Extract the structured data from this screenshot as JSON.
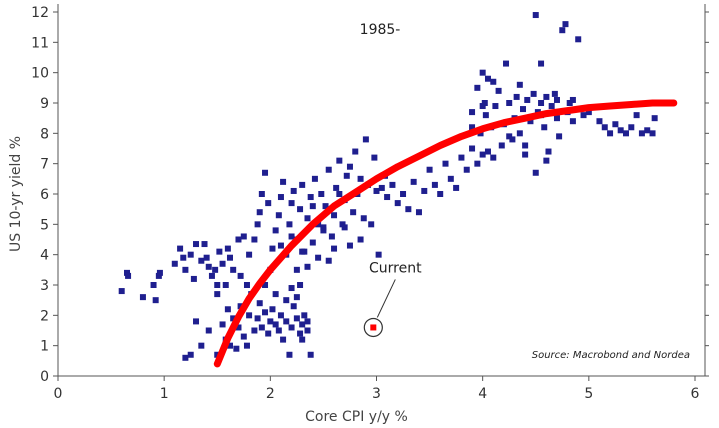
{
  "chart_data": {
    "type": "scatter",
    "title": "",
    "xlabel": "Core CPI y/y %",
    "ylabel": "US 10-yr yield %",
    "xlim": [
      0,
      6
    ],
    "ylim": [
      0,
      12
    ],
    "xticks": [
      "0",
      "1",
      "2",
      "3",
      "4",
      "5",
      "6"
    ],
    "yticks": [
      "0",
      "1",
      "2",
      "3",
      "4",
      "5",
      "6",
      "7",
      "8",
      "9",
      "10",
      "11",
      "12"
    ],
    "grid": false,
    "period_label": "1985-",
    "source": "Source: Macrobond and Nordea",
    "colors": {
      "points": "#1f1f8f",
      "fit": "#ff0000",
      "current": "#ff0000"
    },
    "current": {
      "label": "Current",
      "x": 2.97,
      "y": 1.6
    },
    "fit_curve": {
      "x": [
        1.5,
        1.6,
        1.7,
        1.8,
        1.9,
        2.0,
        2.2,
        2.4,
        2.6,
        2.8,
        3.0,
        3.2,
        3.4,
        3.6,
        3.8,
        4.0,
        4.2,
        4.4,
        4.6,
        4.8,
        5.0,
        5.2,
        5.4,
        5.6,
        5.8
      ],
      "y": [
        0.4,
        1.25,
        1.95,
        2.55,
        3.05,
        3.5,
        4.3,
        5.0,
        5.6,
        6.05,
        6.5,
        6.9,
        7.25,
        7.6,
        7.9,
        8.15,
        8.35,
        8.5,
        8.65,
        8.75,
        8.85,
        8.9,
        8.95,
        9.0,
        9.0
      ]
    },
    "points": [
      [
        0.6,
        2.8
      ],
      [
        0.65,
        3.4
      ],
      [
        0.66,
        3.3
      ],
      [
        0.8,
        2.6
      ],
      [
        0.9,
        3.0
      ],
      [
        0.92,
        2.5
      ],
      [
        0.95,
        3.3
      ],
      [
        0.96,
        3.4
      ],
      [
        1.1,
        3.7
      ],
      [
        1.15,
        4.2
      ],
      [
        1.18,
        3.9
      ],
      [
        1.2,
        3.5
      ],
      [
        1.25,
        4.0
      ],
      [
        1.28,
        3.2
      ],
      [
        1.3,
        4.35
      ],
      [
        1.35,
        3.8
      ],
      [
        1.38,
        4.35
      ],
      [
        1.4,
        3.9
      ],
      [
        1.42,
        3.6
      ],
      [
        1.45,
        3.3
      ],
      [
        1.48,
        3.5
      ],
      [
        1.5,
        3.0
      ],
      [
        1.5,
        2.7
      ],
      [
        1.52,
        4.1
      ],
      [
        1.55,
        3.7
      ],
      [
        1.58,
        3.0
      ],
      [
        1.6,
        4.2
      ],
      [
        1.62,
        3.9
      ],
      [
        1.65,
        3.5
      ],
      [
        1.7,
        4.5
      ],
      [
        1.72,
        3.3
      ],
      [
        1.75,
        4.6
      ],
      [
        1.78,
        3.0
      ],
      [
        1.8,
        4.0
      ],
      [
        1.85,
        4.5
      ],
      [
        1.88,
        5.0
      ],
      [
        1.9,
        5.4
      ],
      [
        1.92,
        6.0
      ],
      [
        1.95,
        6.7
      ],
      [
        1.98,
        5.7
      ],
      [
        1.2,
        0.6
      ],
      [
        1.25,
        0.7
      ],
      [
        1.3,
        1.8
      ],
      [
        1.35,
        1.0
      ],
      [
        1.42,
        1.5
      ],
      [
        1.5,
        0.7
      ],
      [
        1.55,
        1.7
      ],
      [
        1.58,
        1.2
      ],
      [
        1.6,
        2.2
      ],
      [
        1.62,
        1.0
      ],
      [
        1.65,
        1.9
      ],
      [
        1.68,
        0.9
      ],
      [
        1.7,
        1.6
      ],
      [
        1.72,
        2.3
      ],
      [
        1.75,
        1.3
      ],
      [
        1.78,
        1.0
      ],
      [
        1.8,
        2.0
      ],
      [
        1.82,
        2.7
      ],
      [
        1.85,
        1.5
      ],
      [
        1.88,
        1.9
      ],
      [
        1.9,
        2.4
      ],
      [
        1.92,
        1.6
      ],
      [
        1.95,
        2.1
      ],
      [
        1.98,
        1.4
      ],
      [
        2.0,
        1.8
      ],
      [
        2.02,
        2.2
      ],
      [
        2.05,
        1.7
      ],
      [
        2.08,
        1.5
      ],
      [
        2.1,
        2.0
      ],
      [
        2.12,
        1.2
      ],
      [
        2.15,
        1.8
      ],
      [
        2.18,
        0.7
      ],
      [
        2.2,
        1.6
      ],
      [
        2.22,
        2.3
      ],
      [
        2.25,
        1.9
      ],
      [
        2.28,
        1.4
      ],
      [
        2.3,
        1.7
      ],
      [
        2.32,
        2.0
      ],
      [
        2.35,
        1.5
      ],
      [
        2.38,
        0.7
      ],
      [
        2.3,
        1.2
      ],
      [
        2.25,
        2.6
      ],
      [
        2.2,
        2.9
      ],
      [
        2.28,
        3.0
      ],
      [
        2.15,
        2.5
      ],
      [
        2.35,
        1.8
      ],
      [
        2.05,
        2.7
      ],
      [
        1.95,
        3.0
      ],
      [
        2.0,
        3.5
      ],
      [
        2.02,
        4.2
      ],
      [
        2.05,
        4.8
      ],
      [
        2.08,
        5.3
      ],
      [
        2.1,
        5.9
      ],
      [
        2.12,
        6.4
      ],
      [
        2.15,
        4.0
      ],
      [
        2.18,
        5.0
      ],
      [
        2.2,
        5.7
      ],
      [
        2.22,
        6.1
      ],
      [
        2.25,
        4.5
      ],
      [
        2.28,
        5.5
      ],
      [
        2.3,
        6.3
      ],
      [
        2.32,
        4.1
      ],
      [
        2.35,
        5.2
      ],
      [
        2.38,
        5.9
      ],
      [
        2.4,
        4.4
      ],
      [
        2.42,
        6.5
      ],
      [
        2.45,
        5.0
      ],
      [
        2.48,
        6.0
      ],
      [
        2.5,
        4.8
      ],
      [
        2.52,
        5.6
      ],
      [
        2.55,
        6.8
      ],
      [
        2.58,
        4.6
      ],
      [
        2.6,
        5.3
      ],
      [
        2.62,
        6.2
      ],
      [
        2.65,
        7.1
      ],
      [
        2.68,
        5.0
      ],
      [
        2.7,
        5.8
      ],
      [
        2.72,
        6.6
      ],
      [
        2.75,
        4.3
      ],
      [
        2.78,
        5.4
      ],
      [
        2.8,
        7.4
      ],
      [
        2.82,
        6.0
      ],
      [
        2.85,
        4.5
      ],
      [
        2.88,
        5.2
      ],
      [
        2.9,
        7.8
      ],
      [
        2.92,
        6.3
      ],
      [
        2.95,
        5.0
      ],
      [
        2.98,
        7.2
      ],
      [
        3.0,
        6.1
      ],
      [
        3.02,
        4.0
      ],
      [
        2.3,
        4.1
      ],
      [
        2.2,
        4.6
      ],
      [
        2.1,
        4.3
      ],
      [
        2.4,
        5.6
      ],
      [
        2.5,
        4.9
      ],
      [
        2.6,
        4.2
      ],
      [
        2.45,
        3.9
      ],
      [
        2.35,
        3.6
      ],
      [
        2.25,
        3.5
      ],
      [
        2.55,
        3.8
      ],
      [
        2.7,
        4.9
      ],
      [
        2.65,
        6.0
      ],
      [
        2.75,
        6.9
      ],
      [
        2.85,
        6.5
      ],
      [
        3.05,
        6.2
      ],
      [
        3.08,
        6.6
      ],
      [
        3.1,
        5.9
      ],
      [
        3.15,
        6.3
      ],
      [
        3.2,
        5.7
      ],
      [
        3.25,
        6.0
      ],
      [
        3.3,
        5.5
      ],
      [
        3.35,
        6.4
      ],
      [
        3.4,
        5.4
      ],
      [
        3.45,
        6.1
      ],
      [
        3.5,
        6.8
      ],
      [
        3.55,
        6.3
      ],
      [
        3.6,
        6.0
      ],
      [
        3.65,
        7.0
      ],
      [
        3.7,
        6.5
      ],
      [
        3.75,
        6.2
      ],
      [
        3.8,
        7.2
      ],
      [
        3.85,
        6.8
      ],
      [
        3.9,
        7.5
      ],
      [
        3.95,
        7.0
      ],
      [
        3.98,
        8.0
      ],
      [
        4.0,
        7.3
      ],
      [
        4.02,
        9.0
      ],
      [
        4.05,
        7.4
      ],
      [
        3.9,
        8.7
      ],
      [
        3.95,
        9.5
      ],
      [
        4.0,
        10.0
      ],
      [
        4.03,
        8.6
      ],
      [
        4.05,
        9.8
      ],
      [
        4.08,
        8.2
      ],
      [
        4.1,
        7.2
      ],
      [
        4.12,
        8.9
      ],
      [
        4.15,
        9.4
      ],
      [
        4.18,
        7.6
      ],
      [
        4.2,
        8.3
      ],
      [
        4.22,
        10.3
      ],
      [
        4.25,
        9.0
      ],
      [
        4.28,
        7.8
      ],
      [
        4.3,
        8.5
      ],
      [
        4.32,
        9.2
      ],
      [
        4.35,
        8.0
      ],
      [
        4.38,
        8.8
      ],
      [
        4.4,
        7.3
      ],
      [
        4.42,
        9.1
      ],
      [
        4.45,
        8.4
      ],
      [
        4.48,
        9.3
      ],
      [
        4.5,
        6.7
      ],
      [
        4.5,
        11.9
      ],
      [
        4.52,
        8.7
      ],
      [
        4.55,
        9.0
      ],
      [
        4.55,
        10.3
      ],
      [
        4.58,
        8.2
      ],
      [
        4.6,
        9.2
      ],
      [
        4.62,
        7.4
      ],
      [
        4.65,
        8.9
      ],
      [
        4.68,
        9.3
      ],
      [
        4.7,
        8.5
      ],
      [
        4.72,
        7.9
      ],
      [
        4.75,
        11.4
      ],
      [
        4.78,
        11.6
      ],
      [
        4.8,
        8.7
      ],
      [
        4.82,
        9.0
      ],
      [
        4.85,
        8.4
      ],
      [
        4.9,
        11.1
      ],
      [
        4.95,
        8.6
      ],
      [
        5.0,
        8.7
      ],
      [
        5.1,
        8.4
      ],
      [
        5.15,
        8.2
      ],
      [
        5.2,
        8.0
      ],
      [
        5.25,
        8.3
      ],
      [
        5.3,
        8.1
      ],
      [
        5.35,
        8.0
      ],
      [
        5.4,
        8.2
      ],
      [
        5.45,
        8.6
      ],
      [
        5.5,
        8.0
      ],
      [
        5.55,
        8.1
      ],
      [
        5.6,
        8.0
      ],
      [
        5.62,
        8.5
      ],
      [
        4.4,
        7.6
      ],
      [
        4.6,
        7.1
      ],
      [
        4.25,
        7.9
      ],
      [
        4.35,
        9.6
      ],
      [
        4.1,
        9.7
      ],
      [
        4.0,
        8.9
      ],
      [
        3.9,
        8.2
      ],
      [
        4.7,
        9.1
      ],
      [
        4.85,
        9.1
      ],
      [
        4.55,
        8.6
      ]
    ]
  }
}
